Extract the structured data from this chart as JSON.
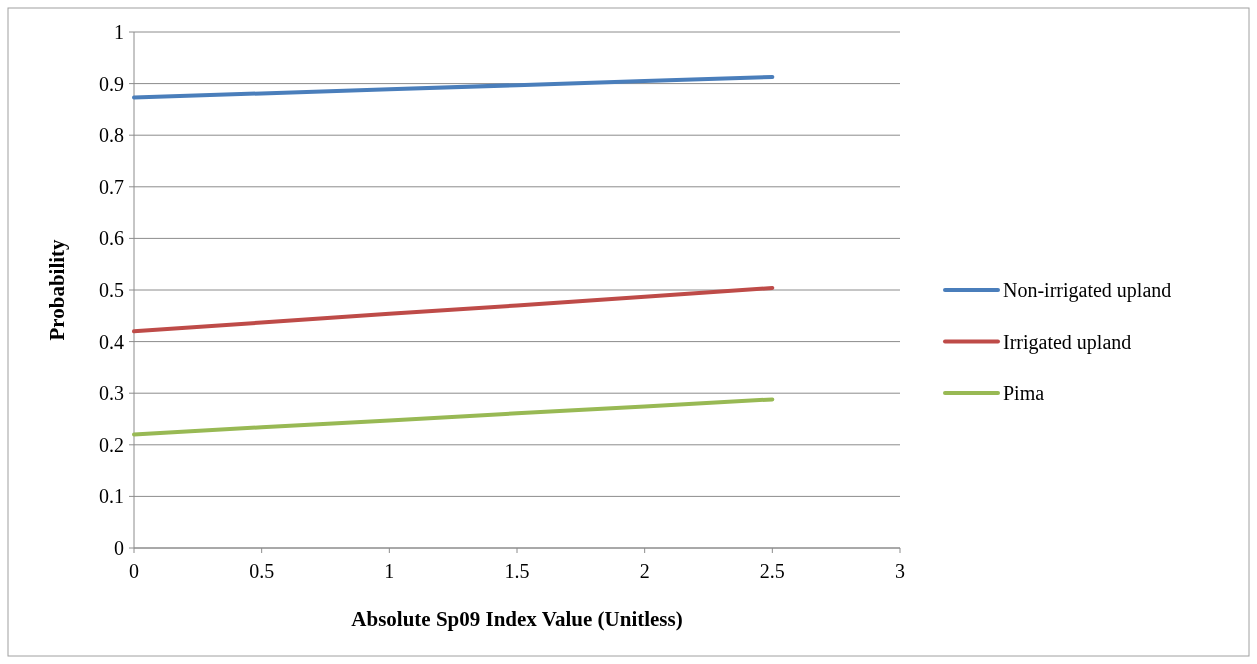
{
  "chart_data": {
    "type": "line",
    "xlabel": "Absolute Sp09 Index Value (Unitless)",
    "ylabel": "Probability",
    "x": [
      0,
      0.5,
      1,
      1.5,
      2,
      2.5
    ],
    "series": [
      {
        "name": "Non-irrigated upland",
        "color": "#4a7ebb",
        "values": [
          0.873,
          0.881,
          0.889,
          0.897,
          0.905,
          0.913
        ]
      },
      {
        "name": "Irrigated upland",
        "color": "#be4b48",
        "values": [
          0.42,
          0.437,
          0.454,
          0.47,
          0.487,
          0.504
        ]
      },
      {
        "name": "Pima",
        "color": "#98b954",
        "values": [
          0.22,
          0.234,
          0.247,
          0.261,
          0.274,
          0.288
        ]
      }
    ],
    "xlim": [
      0,
      3
    ],
    "xticks": [
      0,
      0.5,
      1,
      1.5,
      2,
      2.5,
      3
    ],
    "ylim": [
      0,
      1
    ],
    "yticks": [
      0,
      0.1,
      0.2,
      0.3,
      0.4,
      0.5,
      0.6,
      0.7,
      0.8,
      0.9,
      1
    ],
    "grid": "y",
    "legend": "right",
    "marker": "none",
    "line_style": "solid"
  }
}
